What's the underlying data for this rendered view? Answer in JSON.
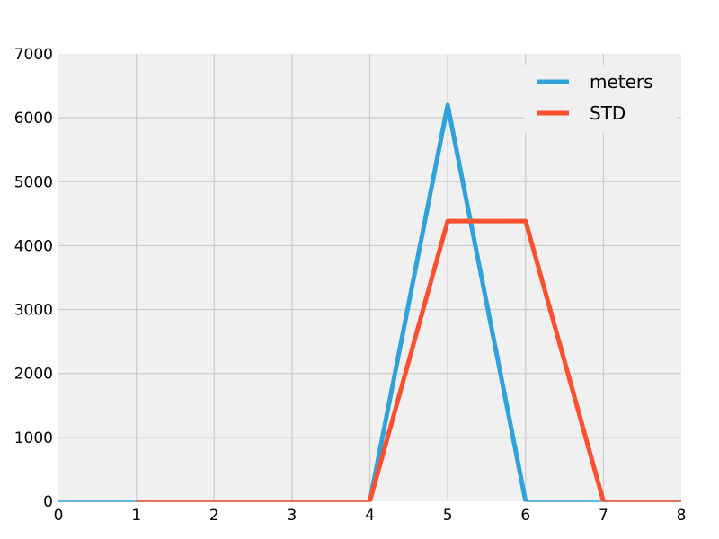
{
  "chart_data": {
    "type": "line",
    "title": "",
    "xlabel": "",
    "ylabel": "",
    "xlim": [
      0,
      8
    ],
    "ylim": [
      0,
      7000
    ],
    "x_ticks": [
      "0",
      "1",
      "2",
      "3",
      "4",
      "5",
      "6",
      "7",
      "8"
    ],
    "y_ticks": [
      "0",
      "1000",
      "2000",
      "3000",
      "4000",
      "5000",
      "6000",
      "7000"
    ],
    "grid": true,
    "legend_position": "top-right",
    "series": [
      {
        "name": "meters",
        "color": "#30a2da",
        "x": [
          0,
          1,
          2,
          3,
          4,
          5,
          6,
          7,
          8
        ],
        "y": [
          0,
          0,
          0,
          0,
          0,
          6200,
          0,
          0,
          0
        ]
      },
      {
        "name": "STD",
        "color": "#fc4f30",
        "x": [
          1,
          2,
          3,
          4,
          5,
          6,
          7,
          8
        ],
        "y": [
          0,
          0,
          0,
          0,
          4384,
          4384,
          0,
          0
        ]
      }
    ]
  }
}
